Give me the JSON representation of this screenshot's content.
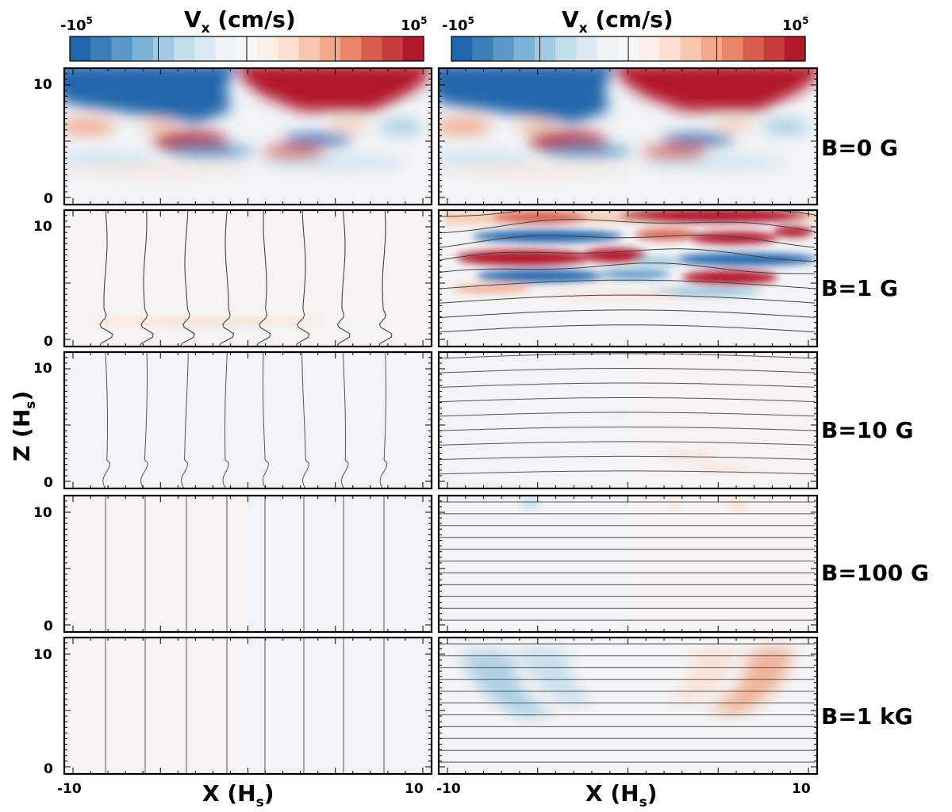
{
  "figure": {
    "colorbar_left": {
      "label": "V",
      "label_sub": "x",
      "label_unit": " (cm/s)",
      "min_base": "-10",
      "min_exp": "5",
      "max_base": "10",
      "max_exp": "5"
    },
    "colorbar_right": {
      "label": "V",
      "label_sub": "x",
      "label_unit": " (cm/s)",
      "min_base": "-10",
      "min_exp": "5",
      "max_base": "10",
      "max_exp": "5"
    },
    "colorbar_colors": [
      "#2166ac",
      "#3b7fb9",
      "#5a98c8",
      "#7db3d6",
      "#a1cbe2",
      "#c2ddec",
      "#dbe9f2",
      "#eef3f7",
      "#f7f7f7",
      "#fbf0e9",
      "#fbe0d1",
      "#f8c8ae",
      "#f2a88a",
      "#e98669",
      "#d9604f",
      "#c43c3c",
      "#b2182b"
    ],
    "ylabel": "Z",
    "ylabel_sub": "s",
    "ylabel_text": "Z (H",
    "xlabel_left": "X (H",
    "xlabel_right": "X (H",
    "xlabel_sub": "s",
    "x_ticks": [
      "-10",
      "10"
    ],
    "z_ticks": [
      "0",
      "10"
    ],
    "row_labels": [
      "B=0 G",
      "B=1 G",
      "B=10 G",
      "B=100 G",
      "B=1 kG"
    ],
    "accent_red": "#b2182b",
    "accent_blue": "#2166ac"
  },
  "chart_data": {
    "type": "heatmap",
    "variable": "Vx (cm/s)",
    "color_range": [
      -100000,
      100000
    ],
    "x_range": [
      -10,
      10
    ],
    "z_range": [
      0,
      11
    ],
    "x_unit": "Hs",
    "z_unit": "Hs",
    "rows": [
      "B=0 G",
      "B=1 G",
      "B=10 G",
      "B=100 G",
      "B=1 kG"
    ],
    "columns": 2,
    "field_lines": {
      "left_column": "vertical",
      "right_column": "horizontal",
      "B=0 G": "none"
    }
  }
}
